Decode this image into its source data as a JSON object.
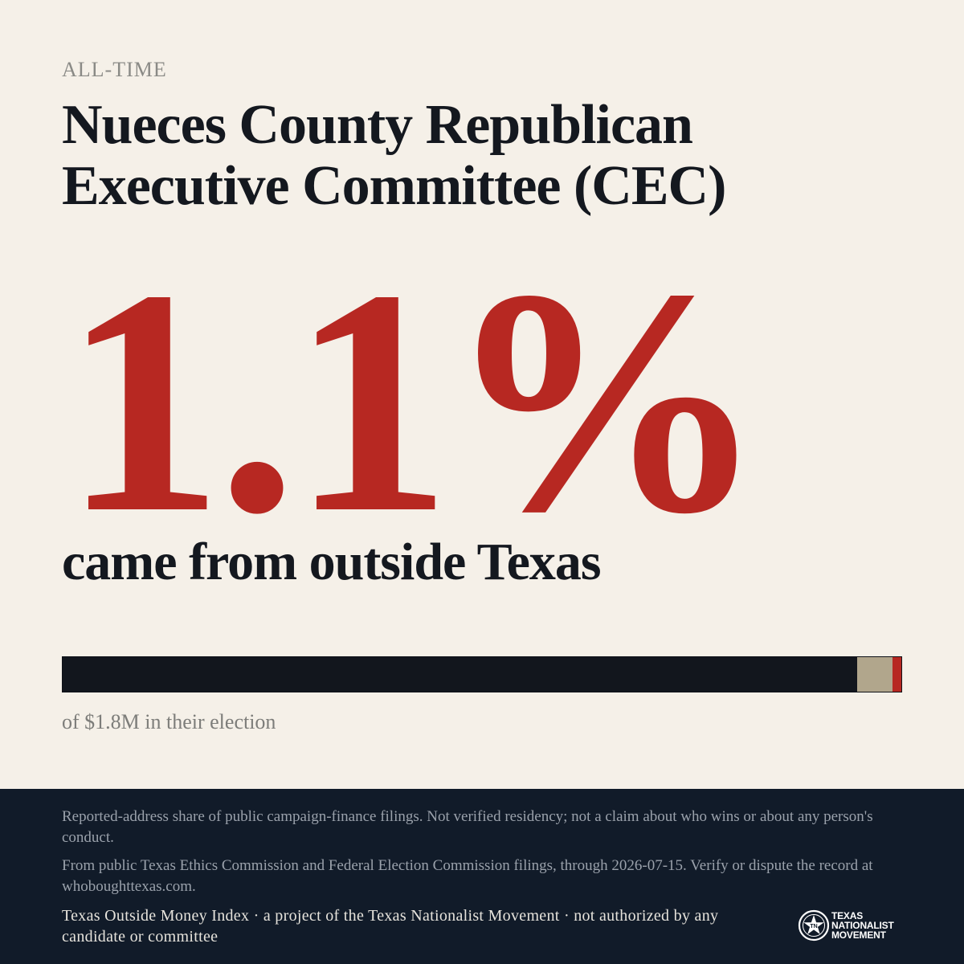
{
  "kicker": "ALL-TIME",
  "title": "Nueces County Republican Executive Committee (CEC)",
  "stat": {
    "value": "1.1%",
    "caption": "came from outside Texas"
  },
  "breakdown": {
    "inside_share_pct": 94.7,
    "unknown_share_pct": 4.2,
    "outside_share_pct": 1.1,
    "colors": {
      "inside": "#12161d",
      "unknown": "#b1a68c",
      "outside": "#b72822"
    }
  },
  "total_text": "of $1.8M in their election",
  "footer": {
    "disclaimer": "Reported-address share of public campaign-finance filings. Not verified residency; not a claim about who wins or about any person's conduct.",
    "source": "From public Texas Ethics Commission and Federal Election Commission filings, through 2026-07-15. Verify or dispute the record at whoboughttexas.com.",
    "credit": "Texas Outside Money Index · a project of the Texas Nationalist Movement · not authorized by any candidate or committee",
    "logo_lines": [
      "TEXAS",
      "NATIONALIST",
      "MOVEMENT"
    ],
    "logo_icon": "star-seal-icon"
  },
  "colors": {
    "background": "#f5f0e8",
    "accent": "#b72822",
    "ink": "#14181f",
    "footer_bg": "#111b29"
  }
}
